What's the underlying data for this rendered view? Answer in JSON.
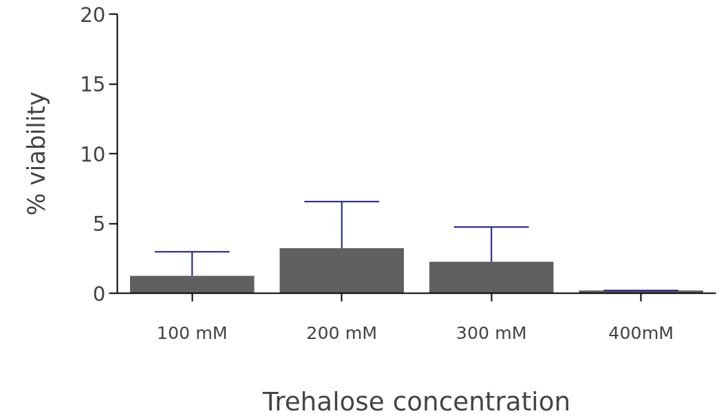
{
  "chart_data": {
    "type": "bar",
    "xlabel": "Trehalose concentration",
    "ylabel": "% viability",
    "categories": [
      "100 mM",
      "200 mM",
      "300 mM",
      "400mM"
    ],
    "values": [
      1.24,
      3.23,
      2.25,
      0.2
    ],
    "errors": [
      [
        1.24,
        2.97
      ],
      [
        3.23,
        6.57
      ],
      [
        2.25,
        4.74
      ],
      [
        0.2,
        0.2
      ]
    ],
    "color": "#606060",
    "ylim": [
      0,
      20
    ],
    "yticks": [
      0,
      5,
      10,
      15,
      20
    ],
    "grid": false
  }
}
